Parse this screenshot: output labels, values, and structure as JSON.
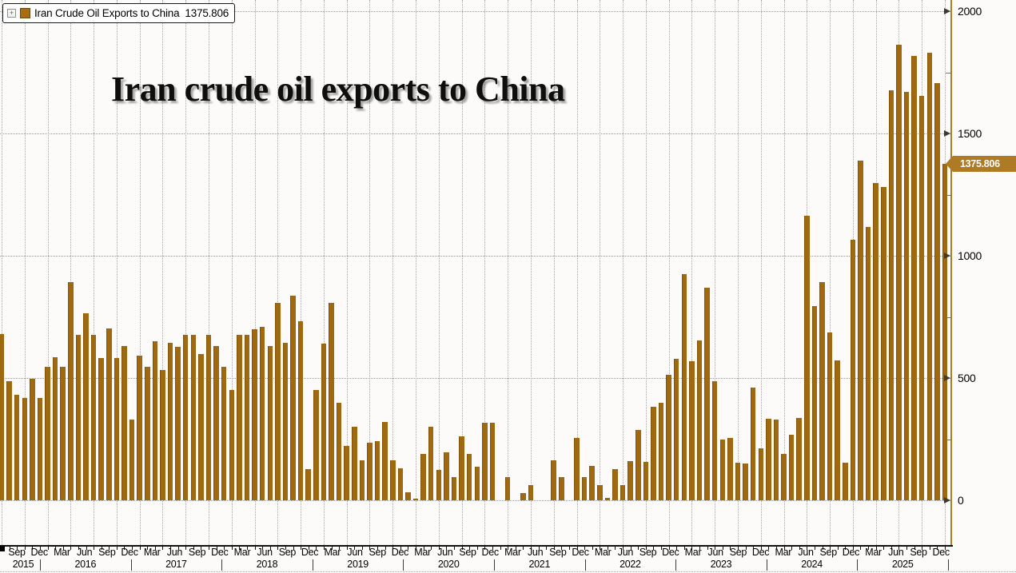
{
  "title": "Iran crude oil exports to China",
  "legend": {
    "expand_icon": "+",
    "label": "Iran Crude Oil Exports to China",
    "value": "1375.806",
    "swatch_color": "#a86e12"
  },
  "last_value_label": "1375.806",
  "colors": {
    "bar": "#a1690f",
    "right_axis_line": "#ae7d1e",
    "value_box_bg": "#ae7b24",
    "value_box_text": "#ffffff",
    "gridline": "#9a9a9a",
    "axis_text": "#000000"
  },
  "y_axis": {
    "side": "right",
    "tick_labels": [
      "0",
      "500",
      "1000",
      "1500",
      "2000"
    ],
    "tick_values": [
      0,
      500,
      1000,
      1500,
      2000
    ],
    "minor_tick_values": [
      250,
      750,
      1250,
      1750
    ],
    "max": 2000
  },
  "x_axis": {
    "quarter_tick_labels": [
      "Sep",
      "Dec",
      "Mar",
      "Jun",
      "Sep",
      "Dec",
      "Mar",
      "Jun",
      "Sep",
      "Dec",
      "Mar",
      "Jun",
      "Sep",
      "Dec",
      "Mar",
      "Jun",
      "Sep",
      "Dec",
      "Mar",
      "Jun",
      "Sep",
      "Dec",
      "Mar",
      "Jun",
      "Sep",
      "Dec",
      "Mar",
      "Jun",
      "Sep",
      "Dec",
      "Mar",
      "Jun",
      "Sep",
      "Dec",
      "Mar",
      "Jun",
      "Sep",
      "Dec",
      "Mar",
      "Jun",
      "Sep",
      "Dec"
    ],
    "year_labels": [
      "2015",
      "2016",
      "2017",
      "2018",
      "2019",
      "2020",
      "2021",
      "2022",
      "2023",
      "2024",
      "2025"
    ],
    "start_month": "Sep 2015",
    "end_month": "Dec 2025"
  },
  "chart_data": {
    "type": "bar",
    "title": "Iran crude oil exports to China",
    "ylim": [
      0,
      2000
    ],
    "grid": "dotted",
    "legend_position": "top-left",
    "series": [
      {
        "name": "Iran Crude Oil Exports to China",
        "start_month": "2015-09",
        "frequency": "monthly",
        "last_value": 1375.806,
        "values": [
          680,
          487,
          431,
          419,
          497,
          419,
          546,
          585,
          546,
          892,
          677,
          765,
          677,
          582,
          703,
          582,
          631,
          330,
          592,
          546,
          650,
          533,
          644,
          627,
          677,
          677,
          598,
          677,
          631,
          546,
          451,
          677,
          677,
          699,
          709,
          631,
          807,
          644,
          837,
          732,
          127,
          452,
          641,
          808,
          400,
          221,
          302,
          163,
          234,
          243,
          321,
          163,
          131,
          33,
          8,
          188,
          302,
          125,
          196,
          96,
          261,
          190,
          137,
          318,
          318,
          0,
          95,
          0,
          29,
          62,
          0,
          0,
          163,
          95,
          0,
          256,
          95,
          142,
          62,
          10,
          127,
          62,
          160,
          287,
          156,
          383,
          400,
          514,
          578,
          926,
          569,
          654,
          868,
          488,
          247,
          254,
          155,
          149,
          460,
          212,
          334,
          329,
          191,
          269,
          338,
          1163,
          795,
          891,
          686,
          572,
          153,
          1065,
          1389,
          1119,
          1296,
          1280,
          1675,
          1863,
          1670,
          1816,
          1653,
          1830,
          1705,
          1375.806
        ]
      }
    ]
  }
}
